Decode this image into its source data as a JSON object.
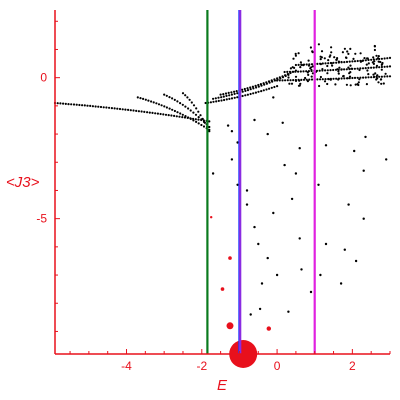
{
  "chart_data": {
    "type": "scatter",
    "title": "",
    "xlabel": "E",
    "ylabel": "<J3>",
    "xlim": [
      -5.9,
      3.0
    ],
    "ylim": [
      -9.8,
      2.4
    ],
    "x_ticks": [
      -4,
      -2,
      0,
      2
    ],
    "y_ticks": [
      0,
      -5
    ],
    "x_tick_labels": [
      "-4",
      "-2",
      "0",
      "2"
    ],
    "y_tick_labels": [
      "0",
      "-5"
    ],
    "grid": false,
    "colors": {
      "axes": "#e8101c",
      "points": "#000000",
      "highlight_points": "#e8101c",
      "line_green": "#0a7a1e",
      "line_blue": "#1f3cff",
      "line_purple": "#8a2be2",
      "line_magenta": "#e020e0"
    },
    "vertical_lines": [
      {
        "x": -1.85,
        "color": "#0a7a1e"
      },
      {
        "x": -1.0,
        "color": "#1f3cff"
      },
      {
        "x": -0.98,
        "color": "#8a2be2"
      },
      {
        "x": 1.0,
        "color": "#e020e0"
      }
    ],
    "curve_bands": [
      {
        "x_start": -5.9,
        "x_end": -1.8,
        "y_start": -0.9,
        "y_end": -1.55
      },
      {
        "x_start": -3.7,
        "x_end": -1.8,
        "y_start": -0.7,
        "y_end": -1.85
      },
      {
        "x_start": -3.0,
        "x_end": -1.8,
        "y_start": -0.6,
        "y_end": -1.75
      },
      {
        "x_start": -2.5,
        "x_end": -1.8,
        "y_start": -0.55,
        "y_end": -1.9
      },
      {
        "x_start": -1.9,
        "x_end": 0.0,
        "y_start": -0.9,
        "y_end": -0.3
      },
      {
        "x_start": -1.7,
        "x_end": 0.3,
        "y_start": -0.75,
        "y_end": 0.1
      },
      {
        "x_start": -1.5,
        "x_end": 0.5,
        "y_start": -0.6,
        "y_end": 0.25
      },
      {
        "x_start": 0.0,
        "x_end": 3.0,
        "y_start": -0.1,
        "y_end": 0.05
      },
      {
        "x_start": 0.2,
        "x_end": 3.0,
        "y_start": 0.2,
        "y_end": 0.4
      },
      {
        "x_start": 0.5,
        "x_end": 3.0,
        "y_start": 0.45,
        "y_end": 0.7
      }
    ],
    "cloud": {
      "x_range": [
        0.3,
        2.9
      ],
      "y_range": [
        -0.3,
        1.2
      ],
      "count": 140
    },
    "sparse_points": [
      {
        "x": -1.3,
        "y": -1.7
      },
      {
        "x": -1.2,
        "y": -1.9
      },
      {
        "x": -1.05,
        "y": -2.3
      },
      {
        "x": -1.2,
        "y": -2.9
      },
      {
        "x": -1.05,
        "y": -3.8
      },
      {
        "x": -1.7,
        "y": -3.4
      },
      {
        "x": -0.6,
        "y": -1.5
      },
      {
        "x": -0.25,
        "y": -2.0
      },
      {
        "x": 0.15,
        "y": -1.6
      },
      {
        "x": -0.1,
        "y": -0.7
      },
      {
        "x": 0.6,
        "y": -2.5
      },
      {
        "x": 1.3,
        "y": -2.4
      },
      {
        "x": 0.2,
        "y": -3.1
      },
      {
        "x": 2.05,
        "y": -2.6
      },
      {
        "x": 2.35,
        "y": -2.1
      },
      {
        "x": 2.9,
        "y": -2.9
      },
      {
        "x": 0.5,
        "y": -3.4
      },
      {
        "x": 1.1,
        "y": -3.8
      },
      {
        "x": 2.3,
        "y": -3.3
      },
      {
        "x": -0.8,
        "y": -4.0
      },
      {
        "x": -0.8,
        "y": -4.5
      },
      {
        "x": 0.4,
        "y": -4.3
      },
      {
        "x": 1.9,
        "y": -4.5
      },
      {
        "x": -0.1,
        "y": -4.8
      },
      {
        "x": 2.3,
        "y": -5.0
      },
      {
        "x": -0.6,
        "y": -5.3
      },
      {
        "x": 0.6,
        "y": -5.7
      },
      {
        "x": -0.5,
        "y": -5.9
      },
      {
        "x": 1.3,
        "y": -5.9
      },
      {
        "x": 1.8,
        "y": -6.1
      },
      {
        "x": -0.25,
        "y": -6.4
      },
      {
        "x": 0.65,
        "y": -6.8
      },
      {
        "x": -0.4,
        "y": -7.3
      },
      {
        "x": 0.0,
        "y": -7.0
      },
      {
        "x": 1.15,
        "y": -7.0
      },
      {
        "x": 0.9,
        "y": -7.6
      },
      {
        "x": -0.7,
        "y": -8.4
      },
      {
        "x": -0.45,
        "y": -8.2
      },
      {
        "x": 0.3,
        "y": -8.3
      },
      {
        "x": -0.2,
        "y": -8.9
      },
      {
        "x": 2.1,
        "y": -6.5
      },
      {
        "x": 1.7,
        "y": -7.3
      }
    ],
    "highlight_points": [
      {
        "x": -1.75,
        "y": -4.95,
        "size": 1.2
      },
      {
        "x": -1.25,
        "y": -6.4,
        "size": 1.8
      },
      {
        "x": -1.45,
        "y": -7.5,
        "size": 1.8
      },
      {
        "x": -1.25,
        "y": -8.8,
        "size": 3.5
      },
      {
        "x": -0.22,
        "y": -8.9,
        "size": 2.2
      },
      {
        "x": -0.9,
        "y": -9.8,
        "size": 14
      }
    ]
  }
}
